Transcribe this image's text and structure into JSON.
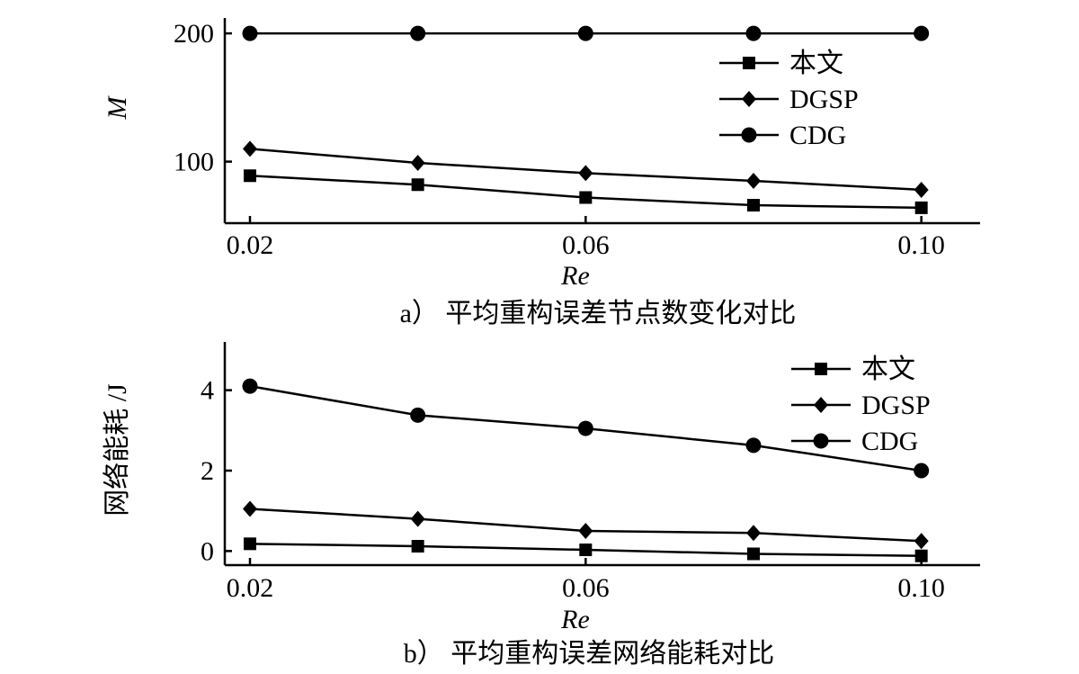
{
  "chart_data": [
    {
      "type": "line",
      "xlabel": "Re",
      "ylabel": "M",
      "caption": "a） 平均重构误差节点数变化对比",
      "xlim": [
        0.017,
        0.107
      ],
      "ylim": [
        52,
        212
      ],
      "xticks": [
        {
          "value": 0.02,
          "label": "0.02"
        },
        {
          "value": 0.06,
          "label": "0.06"
        },
        {
          "value": 0.1,
          "label": "0.10"
        }
      ],
      "yticks": [
        {
          "value": 100,
          "label": "100"
        },
        {
          "value": 200,
          "label": "200"
        }
      ],
      "legend_position": "top-right",
      "x": [
        0.02,
        0.04,
        0.06,
        0.08,
        0.1
      ],
      "series": [
        {
          "name": "本文",
          "marker": "square",
          "values": [
            89,
            82,
            72,
            66,
            64
          ]
        },
        {
          "name": "DGSP",
          "marker": "diamond",
          "values": [
            110,
            99,
            91,
            85,
            78
          ]
        },
        {
          "name": "CDG",
          "marker": "circle",
          "values": [
            200,
            200,
            200,
            200,
            200
          ]
        }
      ]
    },
    {
      "type": "line",
      "xlabel": "Re",
      "ylabel": "网络能耗 /J",
      "caption": "b） 平均重构误差网络能耗对比",
      "xlim": [
        0.017,
        0.107
      ],
      "ylim": [
        -0.35,
        5.2
      ],
      "xticks": [
        {
          "value": 0.02,
          "label": "0.02"
        },
        {
          "value": 0.06,
          "label": "0.06"
        },
        {
          "value": 0.1,
          "label": "0.10"
        }
      ],
      "yticks": [
        {
          "value": 0,
          "label": "0"
        },
        {
          "value": 2,
          "label": "2"
        },
        {
          "value": 4,
          "label": "4"
        }
      ],
      "legend_position": "top-right",
      "x": [
        0.02,
        0.04,
        0.06,
        0.08,
        0.1
      ],
      "series": [
        {
          "name": "本文",
          "marker": "square",
          "values": [
            0.18,
            0.12,
            0.03,
            -0.07,
            -0.12
          ]
        },
        {
          "name": "DGSP",
          "marker": "diamond",
          "values": [
            1.05,
            0.8,
            0.5,
            0.45,
            0.25
          ]
        },
        {
          "name": "CDG",
          "marker": "circle",
          "values": [
            4.1,
            3.38,
            3.05,
            2.63,
            2.0
          ]
        }
      ]
    }
  ]
}
